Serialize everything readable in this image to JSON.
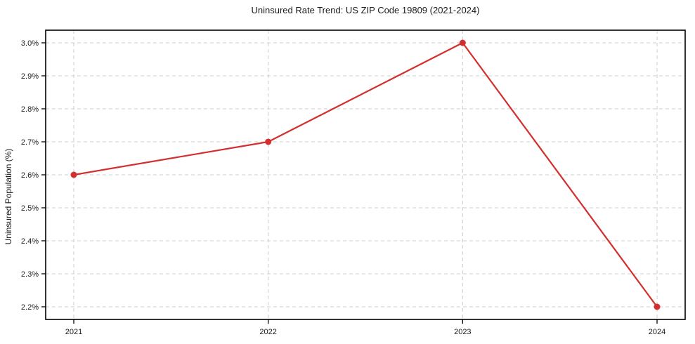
{
  "chart_data": {
    "type": "line",
    "title": "Uninsured Rate Trend: US ZIP Code 19809 (2021-2024)",
    "xlabel": "",
    "ylabel": "Uninsured Population (%)",
    "categories": [
      "2021",
      "2022",
      "2023",
      "2024"
    ],
    "values": [
      2.6,
      2.7,
      3.0,
      2.2
    ],
    "point_labels": [
      "2021: 2.6%",
      "2022: 2.7%",
      "2023: 3.0%",
      "2024: 2.2%"
    ],
    "ylim": [
      2.2,
      3.0
    ],
    "ytick_values": [
      2.2,
      2.3,
      2.4,
      2.5,
      2.6,
      2.7,
      2.8,
      2.9,
      3.0
    ],
    "ytick_labels": [
      "2.2%",
      "2.3%",
      "2.4%",
      "2.5%",
      "2.6%",
      "2.7%",
      "2.8%",
      "2.9%",
      "3.0%"
    ],
    "grid": true,
    "grid_style": "dashed",
    "legend": "none",
    "style": {
      "line_color": "#d32f2f",
      "marker_color": "#d32f2f",
      "grid_color": "#cccccc",
      "axis_color": "#000000",
      "text_color": "#1a1a1a",
      "background": "#ffffff"
    }
  }
}
